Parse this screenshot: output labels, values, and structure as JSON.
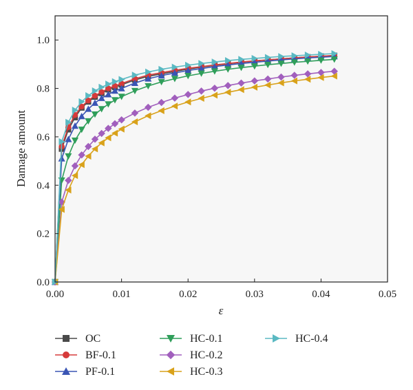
{
  "chart_data": {
    "type": "line",
    "title": "",
    "xlabel": "ε",
    "ylabel": "Damage amount",
    "xlim": [
      0,
      0.05
    ],
    "ylim": [
      0,
      1.1
    ],
    "xticks": [
      "0.00",
      "0.01",
      "0.02",
      "0.03",
      "0.04",
      "0.05"
    ],
    "yticks": [
      "0.0",
      "0.2",
      "0.4",
      "0.6",
      "0.8",
      "1.0"
    ],
    "grid": false,
    "legend_position": "below, 3 columns",
    "x": [
      0.0,
      0.001,
      0.002,
      0.003,
      0.004,
      0.005,
      0.006,
      0.007,
      0.008,
      0.009,
      0.01,
      0.012,
      0.014,
      0.016,
      0.018,
      0.02,
      0.022,
      0.024,
      0.026,
      0.028,
      0.03,
      0.032,
      0.034,
      0.036,
      0.038,
      0.04,
      0.042
    ],
    "series": [
      {
        "name": "OC",
        "marker": "square",
        "color": "#4a4a4a",
        "values": [
          0.0,
          0.55,
          0.63,
          0.68,
          0.72,
          0.745,
          0.765,
          0.78,
          0.795,
          0.805,
          0.815,
          0.835,
          0.85,
          0.86,
          0.87,
          0.88,
          0.888,
          0.895,
          0.902,
          0.908,
          0.913,
          0.918,
          0.922,
          0.926,
          0.93,
          0.933,
          0.936
        ]
      },
      {
        "name": "BF-0.1",
        "marker": "circle",
        "color": "#d63a3a",
        "values": [
          0.0,
          0.56,
          0.64,
          0.69,
          0.725,
          0.75,
          0.77,
          0.785,
          0.8,
          0.81,
          0.82,
          0.84,
          0.855,
          0.865,
          0.875,
          0.883,
          0.89,
          0.897,
          0.903,
          0.909,
          0.914,
          0.918,
          0.922,
          0.926,
          0.93,
          0.933,
          0.936
        ]
      },
      {
        "name": "PF-0.1",
        "marker": "triangle-up",
        "color": "#3a55b4",
        "values": [
          0.0,
          0.51,
          0.59,
          0.645,
          0.685,
          0.715,
          0.74,
          0.76,
          0.775,
          0.79,
          0.8,
          0.822,
          0.84,
          0.853,
          0.864,
          0.874,
          0.882,
          0.89,
          0.897,
          0.903,
          0.908,
          0.913,
          0.918,
          0.922,
          0.926,
          0.929,
          0.932
        ]
      },
      {
        "name": "HC-0.1",
        "marker": "triangle-down",
        "color": "#2f9e5a",
        "values": [
          0.0,
          0.42,
          0.52,
          0.585,
          0.63,
          0.665,
          0.693,
          0.715,
          0.735,
          0.752,
          0.766,
          0.79,
          0.81,
          0.827,
          0.84,
          0.852,
          0.862,
          0.871,
          0.879,
          0.886,
          0.892,
          0.898,
          0.903,
          0.908,
          0.912,
          0.916,
          0.92
        ]
      },
      {
        "name": "HC-0.2",
        "marker": "diamond",
        "color": "#a15fbd",
        "values": [
          0.0,
          0.33,
          0.42,
          0.48,
          0.525,
          0.56,
          0.59,
          0.614,
          0.635,
          0.654,
          0.67,
          0.698,
          0.722,
          0.742,
          0.76,
          0.775,
          0.789,
          0.801,
          0.812,
          0.822,
          0.831,
          0.839,
          0.847,
          0.854,
          0.86,
          0.866,
          0.871
        ]
      },
      {
        "name": "HC-0.3",
        "marker": "triangle-left",
        "color": "#d9a21b",
        "values": [
          0.0,
          0.3,
          0.38,
          0.44,
          0.485,
          0.52,
          0.55,
          0.575,
          0.596,
          0.615,
          0.632,
          0.662,
          0.687,
          0.708,
          0.727,
          0.744,
          0.759,
          0.772,
          0.784,
          0.795,
          0.805,
          0.814,
          0.823,
          0.831,
          0.838,
          0.845,
          0.851
        ]
      },
      {
        "name": "HC-0.4",
        "marker": "triangle-right",
        "color": "#5ab9c2",
        "values": [
          0.0,
          0.58,
          0.66,
          0.71,
          0.745,
          0.77,
          0.79,
          0.805,
          0.818,
          0.828,
          0.837,
          0.855,
          0.868,
          0.879,
          0.888,
          0.896,
          0.903,
          0.909,
          0.915,
          0.92,
          0.924,
          0.928,
          0.932,
          0.935,
          0.938,
          0.941,
          0.944
        ]
      }
    ]
  }
}
